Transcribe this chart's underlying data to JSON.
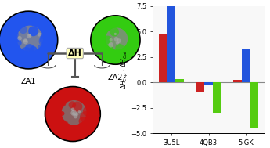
{
  "categories": [
    "3U5L",
    "4QB3",
    "5IGK"
  ],
  "series": {
    "red": [
      4.8,
      -1.0,
      0.2
    ],
    "blue": [
      7.6,
      -0.3,
      3.2
    ],
    "green": [
      0.3,
      -3.0,
      -4.5
    ]
  },
  "colors": {
    "red": "#cc0000",
    "blue": "#1144cc",
    "green": "#44cc00"
  },
  "bar_colors": {
    "red": "#cc2222",
    "blue": "#2255dd",
    "green": "#55cc11"
  },
  "mol_colors": {
    "za1_main": "#2255ee",
    "za1_inner": "#888888",
    "za2_main": "#33cc11",
    "za2_inner": "#888888",
    "za3_main": "#cc1111",
    "za3_inner": "#777777"
  },
  "ylabel": "ΔH_{Exp} · ΔH_{Cal}",
  "ylim": [
    -5.0,
    7.5
  ],
  "yticks": [
    -5.0,
    -2.5,
    0.0,
    2.5,
    5.0,
    7.5
  ],
  "bar_width": 0.22,
  "zero_line_color": "#888888",
  "bg_color": "#ffffff",
  "panel_bg": "#f8f8f8"
}
